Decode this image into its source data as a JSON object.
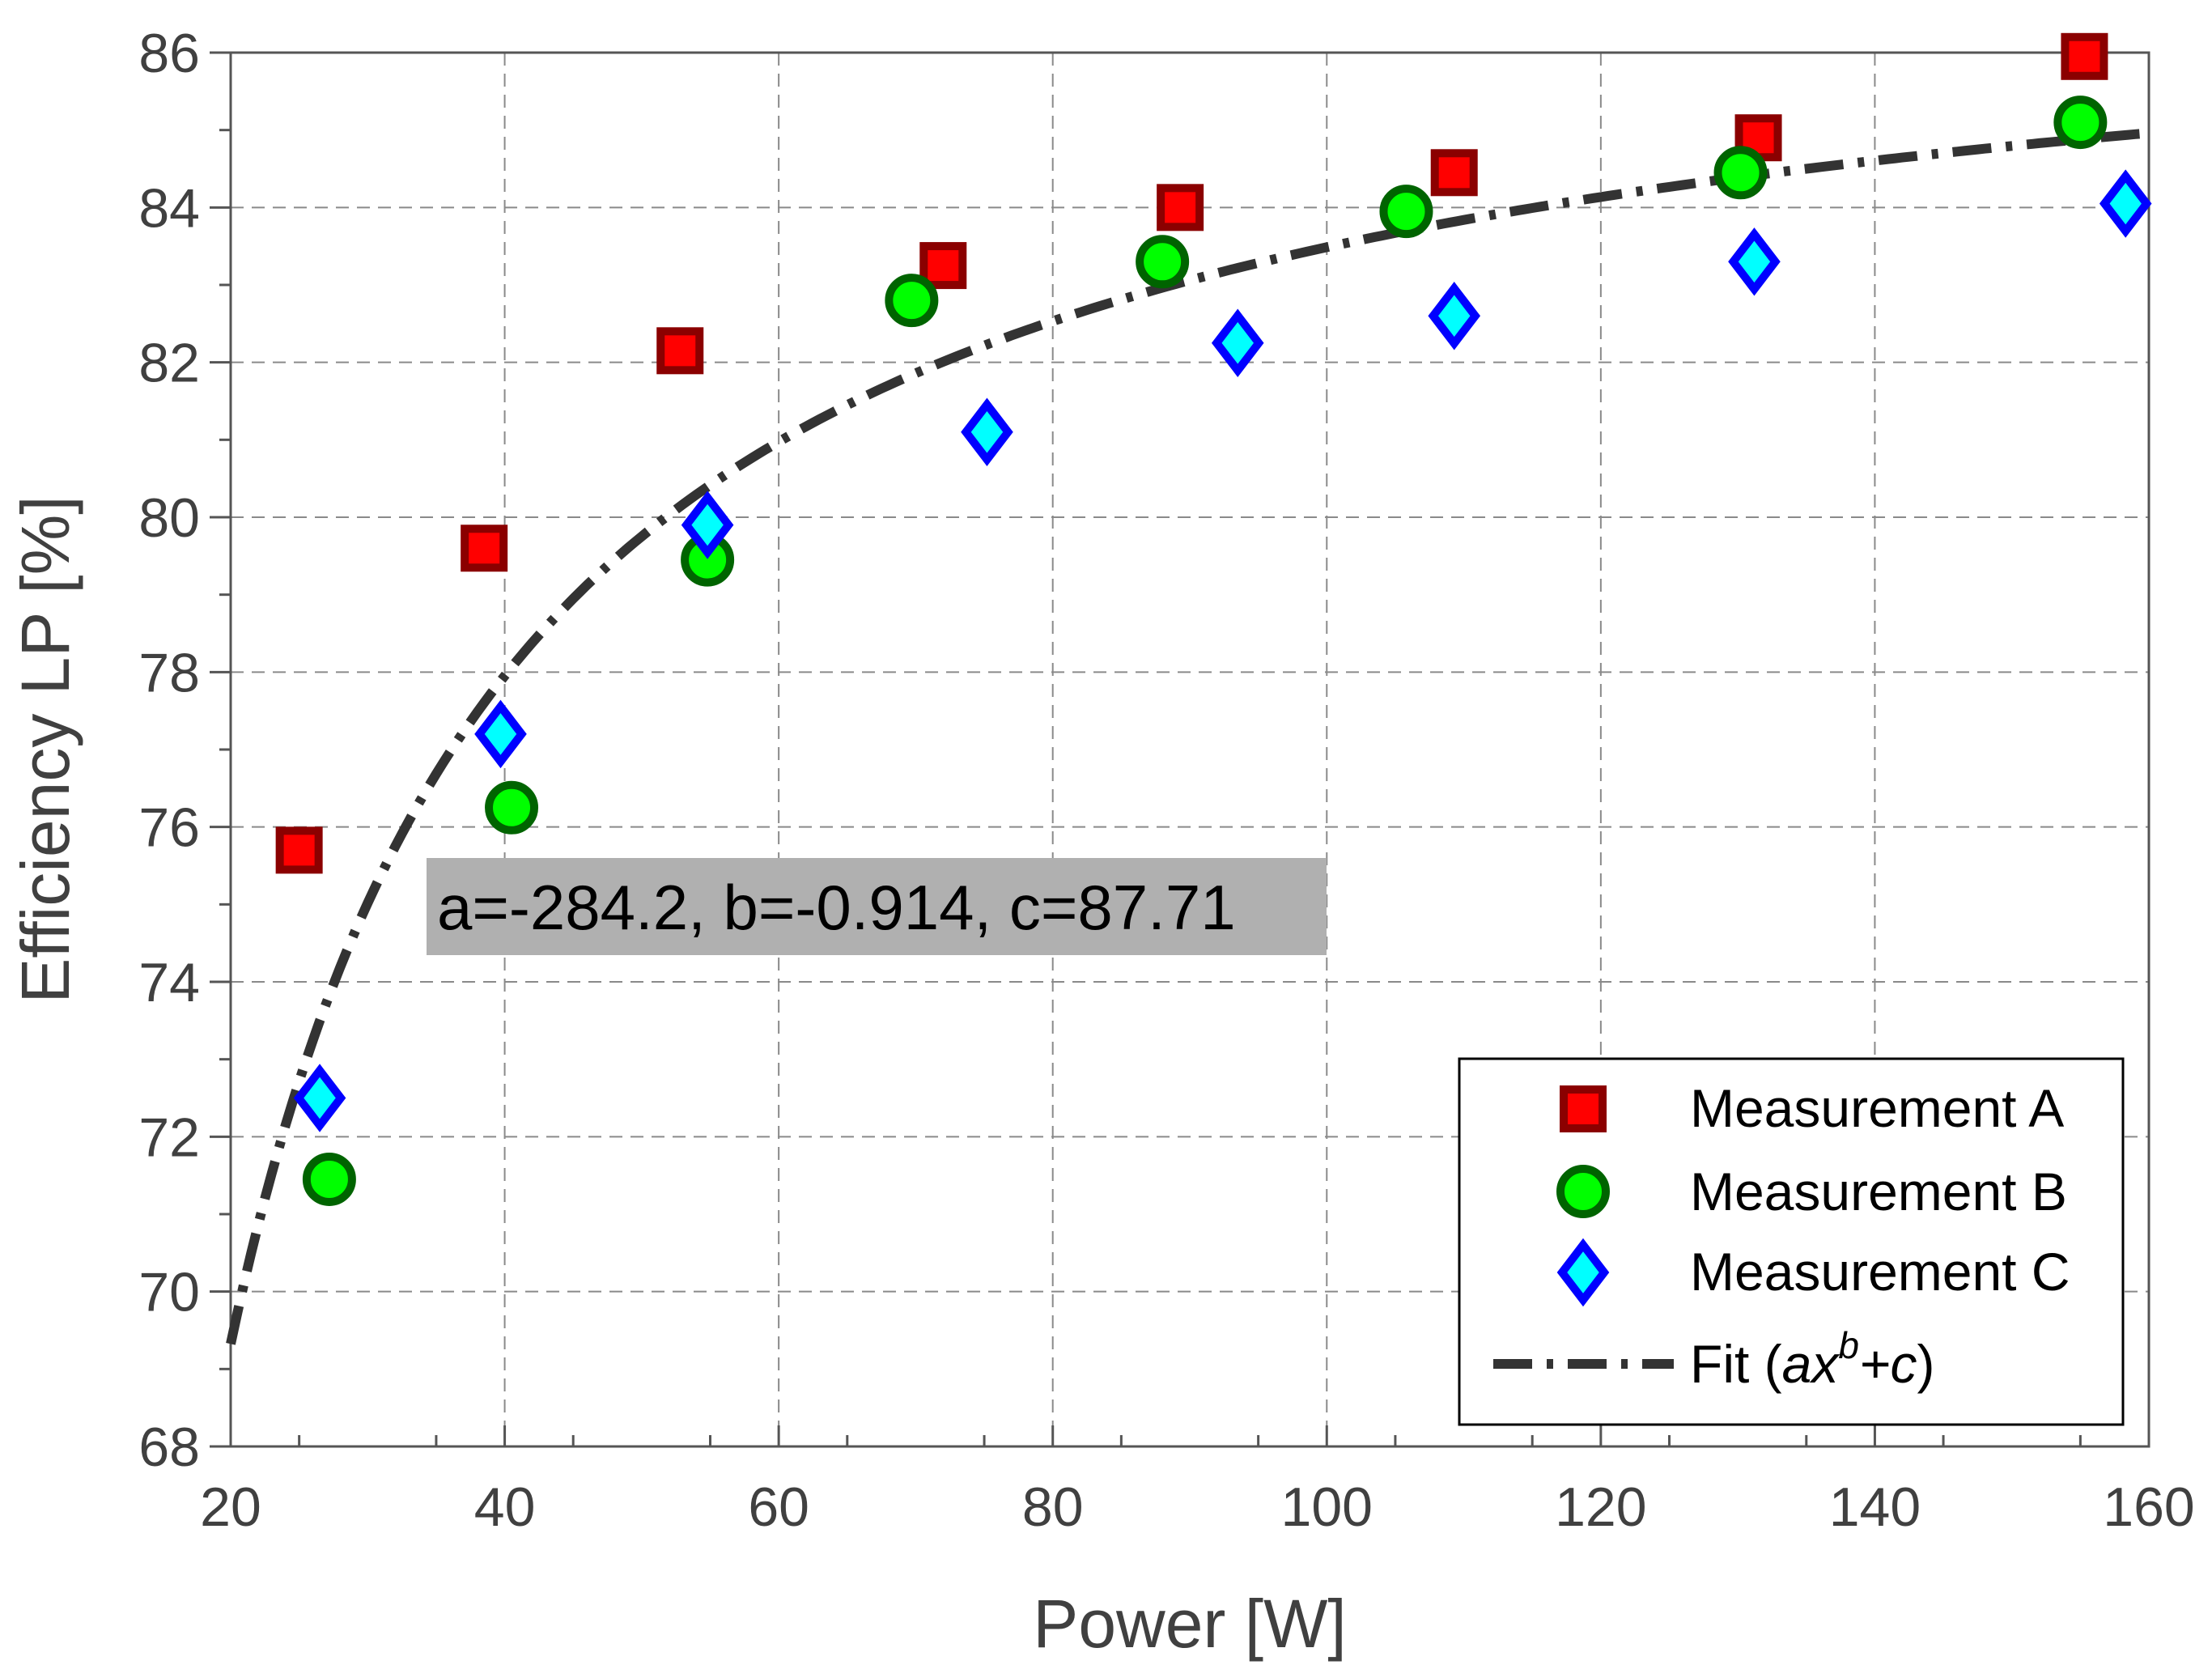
{
  "chart_data": {
    "type": "scatter",
    "title": "",
    "xlabel": "Power [W]",
    "ylabel": "Efficiency LP [%]",
    "xlim": [
      20,
      160
    ],
    "ylim": [
      68,
      86
    ],
    "xticks": [
      20,
      40,
      60,
      80,
      100,
      120,
      140,
      160
    ],
    "yticks": [
      68,
      70,
      72,
      74,
      76,
      78,
      80,
      82,
      84,
      86
    ],
    "grid": true,
    "legend_position": "bottom-right",
    "colors": {
      "A_fill": "#ff0000",
      "A_edge": "#8b0000",
      "B_fill": "#00ff00",
      "B_edge": "#006400",
      "C_fill": "#00ffff",
      "C_edge": "#0000ff",
      "fit": "#333333",
      "annotation_bg": "#b0b0b0"
    },
    "series": [
      {
        "name": "Measurement A",
        "marker": "square",
        "x": [
          25,
          38.5,
          52.8,
          72,
          89.3,
          109.3,
          131.5,
          155.3
        ],
        "y": [
          75.7,
          79.6,
          82.15,
          83.25,
          84.0,
          84.45,
          84.9,
          85.95
        ]
      },
      {
        "name": "Measurement B",
        "marker": "circle",
        "x": [
          27.2,
          40.5,
          54.8,
          69.7,
          88,
          105.8,
          130.2,
          155
        ],
        "y": [
          71.45,
          76.25,
          79.45,
          82.8,
          83.3,
          83.95,
          84.45,
          85.1
        ]
      },
      {
        "name": "Measurement C",
        "marker": "diamond",
        "x": [
          26.5,
          39.7,
          54.8,
          75.2,
          93.5,
          109.3,
          131.2,
          158.3
        ],
        "y": [
          72.5,
          77.2,
          79.9,
          81.1,
          82.25,
          82.6,
          83.3,
          84.05
        ]
      }
    ],
    "fit": {
      "label_prefix": "Fit (",
      "label_a": "ax",
      "label_exp": "b",
      "label_rest": "+c",
      "label_suffix": ")",
      "a": -284.2,
      "b": -0.914,
      "c": 87.71,
      "x_range": [
        20,
        160
      ]
    },
    "annotation": "a=-284.2, b=-0.914, c=87.71"
  }
}
